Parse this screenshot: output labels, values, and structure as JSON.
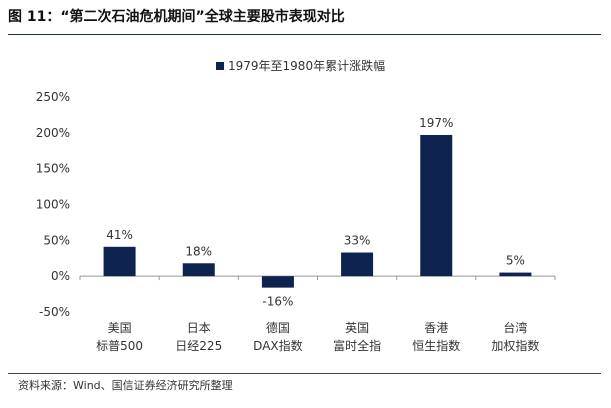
{
  "figure": {
    "title": "图 11：“第二次石油危机期间”全球主要股市表现对比",
    "source": "资料来源：Wind、国信证券经济研究所整理"
  },
  "colors": {
    "bar": "#0f2350",
    "axis": "#999999"
  },
  "chart_data": {
    "type": "bar",
    "categories": [
      [
        "美国",
        "标普500"
      ],
      [
        "日本",
        "日经225"
      ],
      [
        "德国",
        "DAX指数"
      ],
      [
        "英国",
        "富时全指"
      ],
      [
        "香港",
        "恒生指数"
      ],
      [
        "台湾",
        "加权指数"
      ]
    ],
    "series": [
      {
        "name": "1979年至1980年累计涨跌幅",
        "values": [
          41,
          18,
          -16,
          33,
          197,
          5
        ]
      }
    ],
    "data_labels": [
      "41%",
      "18%",
      "-16%",
      "33%",
      "197%",
      "5%"
    ],
    "ylim": [
      -50,
      250
    ],
    "yticks": [
      250,
      200,
      150,
      100,
      50,
      0,
      -50
    ],
    "ytick_labels": [
      "250%",
      "200%",
      "150%",
      "100%",
      "50%",
      "0%",
      "-50%"
    ],
    "legend_position": "top-center",
    "grid": false
  }
}
